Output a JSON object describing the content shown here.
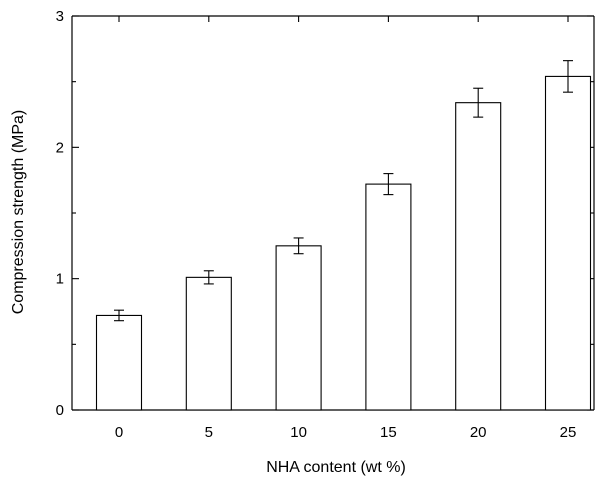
{
  "chart_data": {
    "type": "bar",
    "categories": [
      "0",
      "5",
      "10",
      "15",
      "20",
      "25"
    ],
    "values": [
      0.72,
      1.01,
      1.25,
      1.72,
      2.34,
      2.54
    ],
    "error": [
      0.04,
      0.05,
      0.06,
      0.08,
      0.11,
      0.12
    ],
    "xlabel": "NHA content (wt %)",
    "ylabel": "Compression strength (MPa)",
    "ylim": [
      0,
      3
    ],
    "yticks": [
      "0",
      "1",
      "2",
      "3"
    ],
    "grid": false,
    "bar_fill": "#ffffff",
    "bar_stroke": "#000000"
  }
}
